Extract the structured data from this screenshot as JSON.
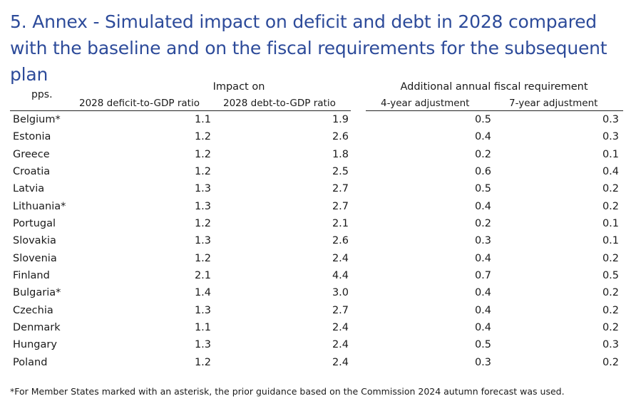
{
  "title": "5. Annex - Simulated impact on deficit and debt in 2028 compared with the baseline and on the fiscal requirements for the subsequent plan",
  "table": {
    "unit_label": "pps.",
    "group_impact": "Impact on",
    "group_additional": "Additional annual fiscal requirement",
    "columns": [
      "2028 deficit-to-GDP ratio",
      "2028 debt-to-GDP ratio",
      "4-year adjustment",
      "7-year adjustment"
    ],
    "rows": [
      {
        "country": "Belgium*",
        "deficit": "1.1",
        "debt": "1.9",
        "adj4": "0.5",
        "adj7": "0.3"
      },
      {
        "country": "Estonia",
        "deficit": "1.2",
        "debt": "2.6",
        "adj4": "0.4",
        "adj7": "0.3"
      },
      {
        "country": "Greece",
        "deficit": "1.2",
        "debt": "1.8",
        "adj4": "0.2",
        "adj7": "0.1"
      },
      {
        "country": "Croatia",
        "deficit": "1.2",
        "debt": "2.5",
        "adj4": "0.6",
        "adj7": "0.4"
      },
      {
        "country": "Latvia",
        "deficit": "1.3",
        "debt": "2.7",
        "adj4": "0.5",
        "adj7": "0.2"
      },
      {
        "country": "Lithuania*",
        "deficit": "1.3",
        "debt": "2.7",
        "adj4": "0.4",
        "adj7": "0.2"
      },
      {
        "country": "Portugal",
        "deficit": "1.2",
        "debt": "2.1",
        "adj4": "0.2",
        "adj7": "0.1"
      },
      {
        "country": "Slovakia",
        "deficit": "1.3",
        "debt": "2.6",
        "adj4": "0.3",
        "adj7": "0.1"
      },
      {
        "country": "Slovenia",
        "deficit": "1.2",
        "debt": "2.4",
        "adj4": "0.4",
        "adj7": "0.2"
      },
      {
        "country": "Finland",
        "deficit": "2.1",
        "debt": "4.4",
        "adj4": "0.7",
        "adj7": "0.5"
      },
      {
        "country": "Bulgaria*",
        "deficit": "1.4",
        "debt": "3.0",
        "adj4": "0.4",
        "adj7": "0.2"
      },
      {
        "country": "Czechia",
        "deficit": "1.3",
        "debt": "2.7",
        "adj4": "0.4",
        "adj7": "0.2"
      },
      {
        "country": "Denmark",
        "deficit": "1.1",
        "debt": "2.4",
        "adj4": "0.4",
        "adj7": "0.2"
      },
      {
        "country": "Hungary",
        "deficit": "1.3",
        "debt": "2.4",
        "adj4": "0.5",
        "adj7": "0.3"
      },
      {
        "country": "Poland",
        "deficit": "1.2",
        "debt": "2.4",
        "adj4": "0.3",
        "adj7": "0.2"
      }
    ]
  },
  "footnote": "*For Member States marked with an asterisk, the prior guidance based on the Commission 2024 autumn forecast was used.",
  "colors": {
    "title": "#2d4b9a",
    "text": "#1a1a1a"
  }
}
